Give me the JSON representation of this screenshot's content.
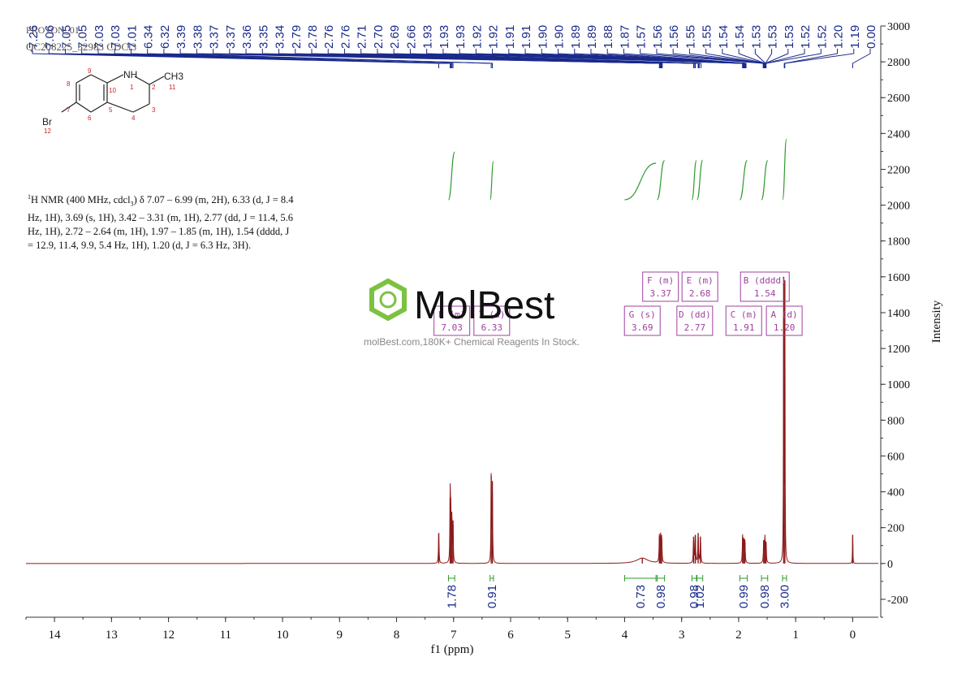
{
  "header": {
    "line1": "PROTON_01",
    "line2": "QC208225_32983 CDCl3"
  },
  "description": {
    "prefix": "1",
    "text": "H NMR (400 MHz, cdcl",
    "solvent_sub": "3",
    "body": ") δ 7.07 – 6.99 (m, 2H), 6.33 (d, J = 8.4 Hz, 1H), 3.69 (s, 1H), 3.42 – 3.31 (m, 1H), 2.77 (dd, J = 11.4, 5.6 Hz, 1H), 2.72 – 2.64 (m, 1H), 1.97 – 1.85 (m, 1H), 1.54 (dddd, J = 12.9, 11.4, 9.9, 5.4 Hz, 1H), 1.20 (d, J = 6.3 Hz, 3H)."
  },
  "structure": {
    "atoms": [
      "NH",
      "CH3",
      "Br"
    ],
    "numbers": [
      "1",
      "2",
      "3",
      "4",
      "5",
      "6",
      "7",
      "8",
      "9",
      "10",
      "11",
      "12"
    ]
  },
  "watermark": {
    "brand": "MolBest",
    "tagline": "molBest.com,180K+ Chemical Reagents In Stock."
  },
  "chart_data": {
    "type": "line",
    "title": "",
    "xlabel": "f1 (ppm)",
    "ylabel": "Intensity",
    "xlim": [
      14.5,
      -0.45
    ],
    "ylim": [
      -300,
      3000
    ],
    "x_ticks": [
      14,
      13,
      12,
      11,
      10,
      9,
      8,
      7,
      6,
      5,
      4,
      3,
      2,
      1,
      0
    ],
    "y_ticks": [
      -200,
      0,
      200,
      400,
      600,
      800,
      1000,
      1200,
      1400,
      1600,
      1800,
      2000,
      2200,
      2400,
      2600,
      2800,
      3000
    ],
    "peaks": [
      {
        "ppm": 7.26,
        "height": 170,
        "width": 0.006
      },
      {
        "ppm": 7.06,
        "height": 370,
        "width": 0.005
      },
      {
        "ppm": 7.05,
        "height": 330,
        "width": 0.005
      },
      {
        "ppm": 7.03,
        "height": 250,
        "width": 0.005
      },
      {
        "ppm": 7.01,
        "height": 240,
        "width": 0.005
      },
      {
        "ppm": 6.34,
        "height": 490,
        "width": 0.005
      },
      {
        "ppm": 6.32,
        "height": 460,
        "width": 0.005
      },
      {
        "ppm": 3.69,
        "height": 30,
        "width": 0.12
      },
      {
        "ppm": 3.39,
        "height": 150,
        "width": 0.006
      },
      {
        "ppm": 3.37,
        "height": 160,
        "width": 0.006
      },
      {
        "ppm": 3.35,
        "height": 140,
        "width": 0.006
      },
      {
        "ppm": 2.79,
        "height": 150,
        "width": 0.006
      },
      {
        "ppm": 2.76,
        "height": 160,
        "width": 0.006
      },
      {
        "ppm": 2.71,
        "height": 170,
        "width": 0.006
      },
      {
        "ppm": 2.67,
        "height": 150,
        "width": 0.006
      },
      {
        "ppm": 1.93,
        "height": 150,
        "width": 0.006
      },
      {
        "ppm": 1.91,
        "height": 140,
        "width": 0.006
      },
      {
        "ppm": 1.89,
        "height": 120,
        "width": 0.006
      },
      {
        "ppm": 1.56,
        "height": 130,
        "width": 0.006
      },
      {
        "ppm": 1.54,
        "height": 140,
        "width": 0.006
      },
      {
        "ppm": 1.52,
        "height": 120,
        "width": 0.006
      },
      {
        "ppm": 1.21,
        "height": 1600,
        "width": 0.004
      },
      {
        "ppm": 1.19,
        "height": 1580,
        "width": 0.004
      },
      {
        "ppm": 0.0,
        "height": 160,
        "width": 0.004
      }
    ],
    "peak_labels": [
      "7.26",
      "7.06",
      "7.05",
      "7.05",
      "7.03",
      "7.03",
      "7.01",
      "6.34",
      "6.32",
      "3.39",
      "3.38",
      "3.37",
      "3.37",
      "3.36",
      "3.35",
      "3.34",
      "2.79",
      "2.78",
      "2.76",
      "2.76",
      "2.71",
      "2.70",
      "2.69",
      "2.66",
      "1.93",
      "1.93",
      "1.93",
      "1.92",
      "1.92",
      "1.91",
      "1.91",
      "1.90",
      "1.90",
      "1.89",
      "1.89",
      "1.88",
      "1.87",
      "1.57",
      "1.56",
      "1.56",
      "1.55",
      "1.55",
      "1.54",
      "1.54",
      "1.53",
      "1.53",
      "1.53",
      "1.52",
      "1.52",
      "1.20",
      "1.19",
      "0.00"
    ],
    "peak_label_ppm": [
      7.26,
      7.06,
      7.05,
      7.05,
      7.03,
      7.03,
      7.01,
      6.34,
      6.32,
      3.39,
      3.38,
      3.37,
      3.37,
      3.36,
      3.35,
      3.34,
      2.79,
      2.78,
      2.76,
      2.76,
      2.71,
      2.7,
      2.69,
      2.66,
      1.93,
      1.93,
      1.93,
      1.92,
      1.92,
      1.91,
      1.91,
      1.9,
      1.9,
      1.89,
      1.89,
      1.88,
      1.87,
      1.57,
      1.56,
      1.56,
      1.55,
      1.55,
      1.54,
      1.54,
      1.53,
      1.53,
      1.53,
      1.52,
      1.52,
      1.2,
      1.19,
      0.0
    ],
    "integrals": [
      {
        "from": 7.09,
        "to": 6.98,
        "value": "1.78"
      },
      {
        "from": 6.36,
        "to": 6.3,
        "value": "0.91"
      },
      {
        "from": 4.0,
        "to": 3.45,
        "value": "0.73"
      },
      {
        "from": 3.43,
        "to": 3.3,
        "value": "0.98"
      },
      {
        "from": 2.82,
        "to": 2.74,
        "value": "0.98"
      },
      {
        "from": 2.73,
        "to": 2.63,
        "value": "1.02"
      },
      {
        "from": 1.98,
        "to": 1.85,
        "value": "0.99"
      },
      {
        "from": 1.6,
        "to": 1.49,
        "value": "0.98"
      },
      {
        "from": 1.23,
        "to": 1.16,
        "value": "3.00"
      }
    ],
    "multiplets": [
      {
        "id": "F",
        "type": "m",
        "shift": "3.37"
      },
      {
        "id": "E",
        "type": "m",
        "shift": "2.68"
      },
      {
        "id": "B",
        "type": "dddd",
        "shift": "1.54"
      },
      {
        "id": "G",
        "type": "s",
        "shift": "3.69"
      },
      {
        "id": "D",
        "type": "dd",
        "shift": "2.77"
      },
      {
        "id": "C",
        "type": "m",
        "shift": "1.91"
      },
      {
        "id": "A",
        "type": "d",
        "shift": "1.20"
      },
      {
        "id": "H",
        "type": "m",
        "shift": "7.03"
      },
      {
        "id": "I",
        "type": "d",
        "shift": "6.33"
      }
    ],
    "colors": {
      "spectrum": "#8b1a1a",
      "peak_label": "#1a2a8c",
      "integral": "#2e9b2e",
      "multiplet": "#a040a0",
      "axis": "#333333"
    }
  }
}
